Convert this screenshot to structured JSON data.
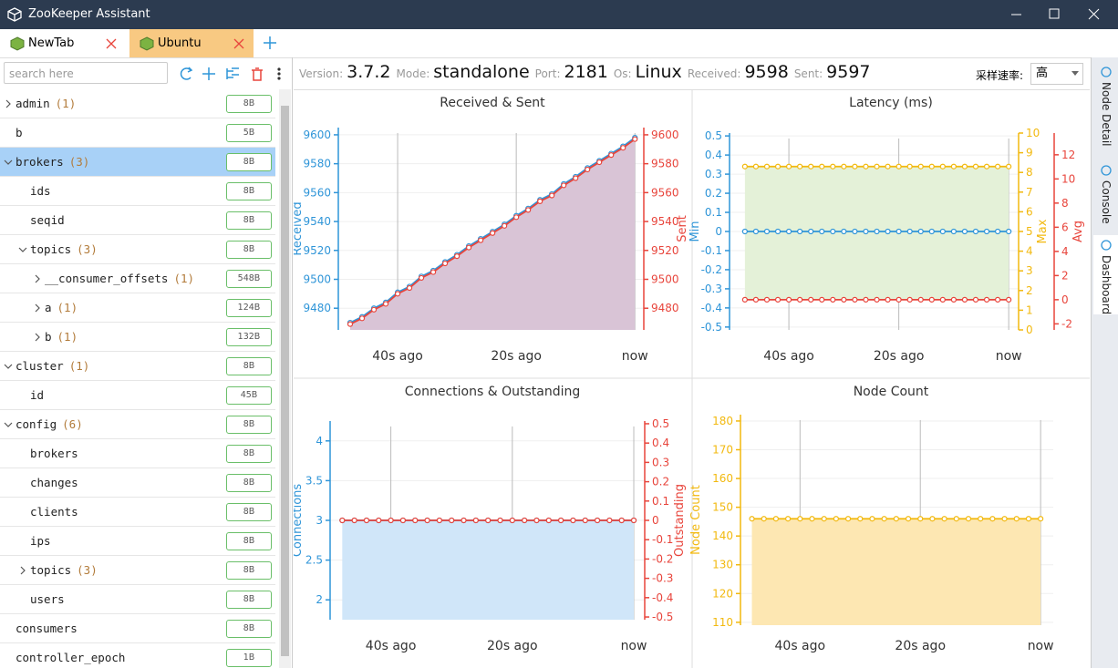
{
  "window": {
    "title": "ZooKeeper Assistant"
  },
  "tabs": [
    {
      "label": "NewTab"
    },
    {
      "label": "Ubuntu",
      "active": true
    }
  ],
  "sidebar": {
    "search_placeholder": "search here",
    "tree": [
      {
        "name": "admin",
        "count": "(1)",
        "size": "8B",
        "depth": 0,
        "state": "collapsed"
      },
      {
        "name": "b",
        "size": "5B",
        "depth": 0
      },
      {
        "name": "brokers",
        "count": "(3)",
        "size": "8B",
        "depth": 0,
        "state": "expanded",
        "selected": true
      },
      {
        "name": "ids",
        "size": "8B",
        "depth": 1
      },
      {
        "name": "seqid",
        "size": "8B",
        "depth": 1
      },
      {
        "name": "topics",
        "count": "(3)",
        "size": "8B",
        "depth": 1,
        "state": "expanded"
      },
      {
        "name": "__consumer_offsets",
        "count": "(1)",
        "size": "548B",
        "depth": 2,
        "state": "collapsed"
      },
      {
        "name": "a",
        "count": "(1)",
        "size": "124B",
        "depth": 2,
        "state": "collapsed"
      },
      {
        "name": "b",
        "count": "(1)",
        "size": "132B",
        "depth": 2,
        "state": "collapsed"
      },
      {
        "name": "cluster",
        "count": "(1)",
        "size": "8B",
        "depth": 0,
        "state": "expanded"
      },
      {
        "name": "id",
        "size": "45B",
        "depth": 1
      },
      {
        "name": "config",
        "count": "(6)",
        "size": "8B",
        "depth": 0,
        "state": "expanded"
      },
      {
        "name": "brokers",
        "size": "8B",
        "depth": 1
      },
      {
        "name": "changes",
        "size": "8B",
        "depth": 1
      },
      {
        "name": "clients",
        "size": "8B",
        "depth": 1
      },
      {
        "name": "ips",
        "size": "8B",
        "depth": 1
      },
      {
        "name": "topics",
        "count": "(3)",
        "size": "8B",
        "depth": 1,
        "state": "collapsed"
      },
      {
        "name": "users",
        "size": "8B",
        "depth": 1
      },
      {
        "name": "consumers",
        "size": "8B",
        "depth": 0
      },
      {
        "name": "controller_epoch",
        "size": "1B",
        "depth": 0
      }
    ]
  },
  "status": {
    "items": [
      {
        "label": "Version:",
        "value": "3.7.2"
      },
      {
        "label": "Mode:",
        "value": "standalone"
      },
      {
        "label": "Port:",
        "value": 2181
      },
      {
        "label": "Os:",
        "value": "Linux"
      },
      {
        "label": "Received:",
        "value": 9598
      },
      {
        "label": "Sent:",
        "value": 9597
      }
    ],
    "rate_label": "采样速率:",
    "rate_value": "高"
  },
  "side_tabs": [
    {
      "label": "Node Detail"
    },
    {
      "label": "Console"
    },
    {
      "label": "Dashboard",
      "active": true
    }
  ],
  "dashboard": {
    "charts": [
      {
        "type": "line",
        "title": "Received & Sent",
        "grid": true,
        "x": [
          -48,
          -46,
          -44,
          -42,
          -40,
          -38,
          -36,
          -34,
          -32,
          -30,
          -28,
          -26,
          -24,
          -22,
          -20,
          -18,
          -16,
          -14,
          -12,
          -10,
          -8,
          -6,
          -4,
          -2,
          0
        ],
        "xlim": [
          -50,
          1.5
        ],
        "xticks": [
          {
            "value": -40,
            "label": "40s ago"
          },
          {
            "value": -20,
            "label": "20s ago"
          },
          {
            "value": 0,
            "label": "now"
          }
        ],
        "ylim": [
          9465,
          9605
        ],
        "yticks": [
          9480,
          9500,
          9520,
          9540,
          9560,
          9580,
          9600
        ],
        "y2lim": [
          9465,
          9605
        ],
        "y2ticks": [
          9480,
          9500,
          9520,
          9540,
          9560,
          9580,
          9600
        ],
        "series": [
          {
            "name": "Received",
            "color": "#2f95d8",
            "fill": "#d9c4d6",
            "values": [
              9470,
              9474,
              9480,
              9484,
              9491,
              9495,
              9502,
              9506,
              9512,
              9517,
              9523,
              9528,
              9533,
              9538,
              9544,
              9549,
              9555,
              9559,
              9566,
              9571,
              9577,
              9582,
              9587,
              9592,
              9598
            ]
          },
          {
            "name": "Sent",
            "color": "#e8453c",
            "axis": "y2",
            "values": [
              9469,
              9473,
              9479,
              9483,
              9490,
              9494,
              9501,
              9505,
              9511,
              9516,
              9522,
              9527,
              9532,
              9537,
              9543,
              9548,
              9554,
              9558,
              9565,
              9570,
              9576,
              9581,
              9586,
              9591,
              9597
            ]
          }
        ]
      },
      {
        "type": "line",
        "title": "Latency (ms)",
        "grid": true,
        "x": [
          -48,
          -46,
          -44,
          -42,
          -40,
          -38,
          -36,
          -34,
          -32,
          -30,
          -28,
          -26,
          -24,
          -22,
          -20,
          -18,
          -16,
          -14,
          -12,
          -10,
          -8,
          -6,
          -4,
          -2,
          0
        ],
        "xlim": [
          -50.8,
          1.8
        ],
        "xticks": [
          {
            "value": -40,
            "label": "40s ago"
          },
          {
            "value": -20,
            "label": "20s ago"
          },
          {
            "value": 0,
            "label": "now"
          }
        ],
        "ylim": [
          -0.515,
          0.515
        ],
        "yticks": [
          -0.5,
          -0.4,
          -0.3,
          -0.2,
          -0.1,
          0,
          0.1,
          0.2,
          0.3,
          0.4,
          0.5
        ],
        "y2lim": [
          0,
          10
        ],
        "y2ticks": [
          0,
          1,
          2,
          3,
          4,
          5,
          6,
          7,
          8,
          9,
          10
        ],
        "y3lim": [
          -2.5,
          13.8
        ],
        "y3ticks": [
          -2,
          0,
          2,
          4,
          6,
          8,
          10,
          12
        ],
        "series": [
          {
            "name": "Min",
            "color": "#2f95d8",
            "values": [
              0,
              0,
              0,
              0,
              0,
              0,
              0,
              0,
              0,
              0,
              0,
              0,
              0,
              0,
              0,
              0,
              0,
              0,
              0,
              0,
              0,
              0,
              0,
              0,
              0
            ]
          },
          {
            "name": "Max",
            "color": "#f2b90f",
            "axis": "y2",
            "fill": "#e4f1d8",
            "fill_to": "Avg",
            "values": [
              8.3,
              8.3,
              8.3,
              8.3,
              8.3,
              8.3,
              8.3,
              8.3,
              8.3,
              8.3,
              8.3,
              8.3,
              8.3,
              8.3,
              8.3,
              8.3,
              8.3,
              8.3,
              8.3,
              8.3,
              8.3,
              8.3,
              8.3,
              8.3,
              8.3
            ]
          },
          {
            "name": "Avg",
            "color": "#e8453c",
            "axis": "y3",
            "values": [
              0,
              0,
              0,
              0,
              0,
              0,
              0,
              0,
              0,
              0,
              0,
              0,
              0,
              0,
              0,
              0,
              0,
              0,
              0,
              0,
              0,
              0,
              0,
              0,
              0
            ]
          }
        ]
      },
      {
        "type": "line",
        "title": "Connections & Outstanding",
        "grid": true,
        "x": [
          -48,
          -46,
          -44,
          -42,
          -40,
          -38,
          -36,
          -34,
          -32,
          -30,
          -28,
          -26,
          -24,
          -22,
          -20,
          -18,
          -16,
          -14,
          -12,
          -10,
          -8,
          -6,
          -4,
          -2,
          0
        ],
        "xlim": [
          -50,
          1.8
        ],
        "xticks": [
          {
            "value": -40,
            "label": "40s ago"
          },
          {
            "value": -20,
            "label": "20s ago"
          },
          {
            "value": 0,
            "label": "now"
          }
        ],
        "ylim": [
          1.75,
          4.25
        ],
        "yticks": [
          2,
          2.5,
          3,
          3.5,
          4
        ],
        "y2lim": [
          -0.514,
          0.514
        ],
        "y2ticks": [
          -0.5,
          -0.4,
          -0.3,
          -0.2,
          -0.1,
          0,
          0.1,
          0.2,
          0.3,
          0.4,
          0.5
        ],
        "series": [
          {
            "name": "Connections",
            "color": "#2f95d8",
            "fill": "#d0e6f9",
            "values": [
              3,
              3,
              3,
              3,
              3,
              3,
              3,
              3,
              3,
              3,
              3,
              3,
              3,
              3,
              3,
              3,
              3,
              3,
              3,
              3,
              3,
              3,
              3,
              3,
              3
            ]
          },
          {
            "name": "Outstanding",
            "color": "#e8453c",
            "axis": "y2",
            "values": [
              0,
              0,
              0,
              0,
              0,
              0,
              0,
              0,
              0,
              0,
              0,
              0,
              0,
              0,
              0,
              0,
              0,
              0,
              0,
              0,
              0,
              0,
              0,
              0,
              0
            ]
          }
        ]
      },
      {
        "type": "line",
        "title": "Node Count",
        "grid": true,
        "x": [
          -48,
          -46,
          -44,
          -42,
          -40,
          -38,
          -36,
          -34,
          -32,
          -30,
          -28,
          -26,
          -24,
          -22,
          -20,
          -18,
          -16,
          -14,
          -12,
          -10,
          -8,
          -6,
          -4,
          -2,
          0
        ],
        "xlim": [
          -49.9,
          2.1
        ],
        "xticks": [
          {
            "value": -40,
            "label": "40s ago"
          },
          {
            "value": -20,
            "label": "20s ago"
          },
          {
            "value": 0,
            "label": "now"
          }
        ],
        "ylim": [
          109,
          182.2
        ],
        "yticks": [
          110,
          120,
          130,
          140,
          150,
          160,
          170,
          180
        ],
        "series": [
          {
            "name": "Node Count",
            "color": "#f2b90f",
            "fill": "#fde7b2",
            "values": [
              146,
              146,
              146,
              146,
              146,
              146,
              146,
              146,
              146,
              146,
              146,
              146,
              146,
              146,
              146,
              146,
              146,
              146,
              146,
              146,
              146,
              146,
              146,
              146,
              146
            ]
          }
        ]
      }
    ]
  }
}
